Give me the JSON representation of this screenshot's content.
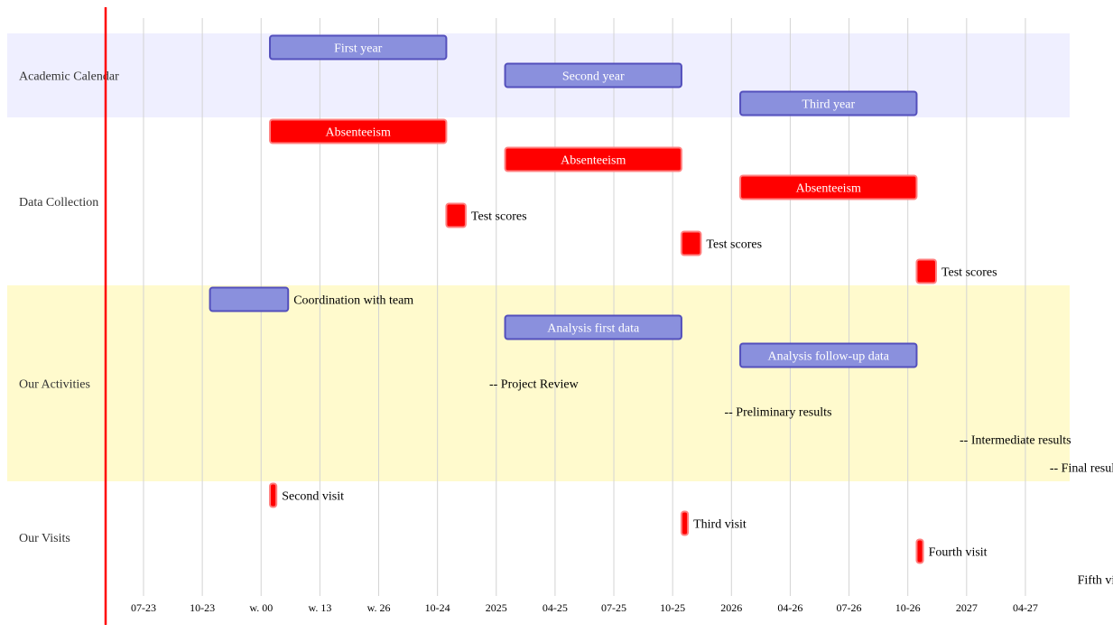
{
  "chart_data": {
    "type": "gantt",
    "x_ticks": [
      "07-23",
      "10-23",
      "w. 00",
      "w. 13",
      "w. 26",
      "10-24",
      "2025",
      "04-25",
      "07-25",
      "10-25",
      "2026",
      "04-26",
      "07-26",
      "10-26",
      "2027",
      "04-27"
    ],
    "today_marker": true,
    "sections": [
      {
        "name": "Academic Calendar",
        "color": "#efefff"
      },
      {
        "name": "Data Collection",
        "color": "#ffffff"
      },
      {
        "name": "Our Activities",
        "color": "#fffacd"
      },
      {
        "name": "Our Visits",
        "color": "#ffffff"
      }
    ],
    "tasks": [
      {
        "section": 0,
        "label": "First year",
        "kind": "bar",
        "color": "blue",
        "start": 2.15,
        "end": 5.15
      },
      {
        "section": 0,
        "label": "Second year",
        "kind": "bar",
        "color": "blue",
        "start": 6.15,
        "end": 9.15
      },
      {
        "section": 0,
        "label": "Third year",
        "kind": "bar",
        "color": "blue",
        "start": 10.15,
        "end": 13.15
      },
      {
        "section": 1,
        "label": "Absenteeism",
        "kind": "bar",
        "color": "red",
        "start": 2.15,
        "end": 5.15
      },
      {
        "section": 1,
        "label": "Absenteeism",
        "kind": "bar",
        "color": "red",
        "start": 6.15,
        "end": 9.15
      },
      {
        "section": 1,
        "label": "Absenteeism",
        "kind": "bar",
        "color": "red",
        "start": 10.15,
        "end": 13.15
      },
      {
        "section": 1,
        "label": "Test scores",
        "kind": "bar",
        "color": "red",
        "start": 5.15,
        "end": 5.48
      },
      {
        "section": 1,
        "label": "Test scores",
        "kind": "bar",
        "color": "red",
        "start": 9.15,
        "end": 9.48
      },
      {
        "section": 1,
        "label": "Test scores",
        "kind": "bar",
        "color": "red",
        "start": 13.15,
        "end": 13.48
      },
      {
        "section": 2,
        "label": "Coordination with team",
        "kind": "bar",
        "color": "blue",
        "start": 1.13,
        "end": 2.46
      },
      {
        "section": 2,
        "label": "Analysis first data",
        "kind": "bar",
        "color": "blue",
        "start": 6.15,
        "end": 9.15
      },
      {
        "section": 2,
        "label": "Analysis follow-up data",
        "kind": "bar",
        "color": "blue",
        "start": 10.15,
        "end": 13.15
      },
      {
        "section": 2,
        "label": "-- Project Review",
        "kind": "text",
        "start": 5.88
      },
      {
        "section": 2,
        "label": "-- Preliminary results",
        "kind": "text",
        "start": 9.88
      },
      {
        "section": 2,
        "label": "-- Intermediate results",
        "kind": "text",
        "start": 13.88
      },
      {
        "section": 2,
        "label": "-- Final results",
        "kind": "milestone",
        "start": 16.82
      },
      {
        "section": 3,
        "label": "Second visit",
        "kind": "bar",
        "color": "red",
        "start": 2.15,
        "end": 2.26
      },
      {
        "section": 3,
        "label": "Third visit",
        "kind": "bar",
        "color": "red",
        "start": 9.15,
        "end": 9.26
      },
      {
        "section": 3,
        "label": "Fourth visit",
        "kind": "bar",
        "color": "red",
        "start": 13.15,
        "end": 13.26
      },
      {
        "section": 3,
        "label": "Fifth visit",
        "kind": "bar",
        "color": "red",
        "start": 16.82,
        "end": 16.95
      }
    ],
    "colors": {
      "blue_fill": "#8a90dd",
      "blue_stroke": "#534fbc",
      "red_fill": "#ff0000",
      "red_stroke": "#ff8080",
      "milestone": "#808080",
      "today": "#ff0000",
      "grid": "#d3d3d3"
    }
  }
}
